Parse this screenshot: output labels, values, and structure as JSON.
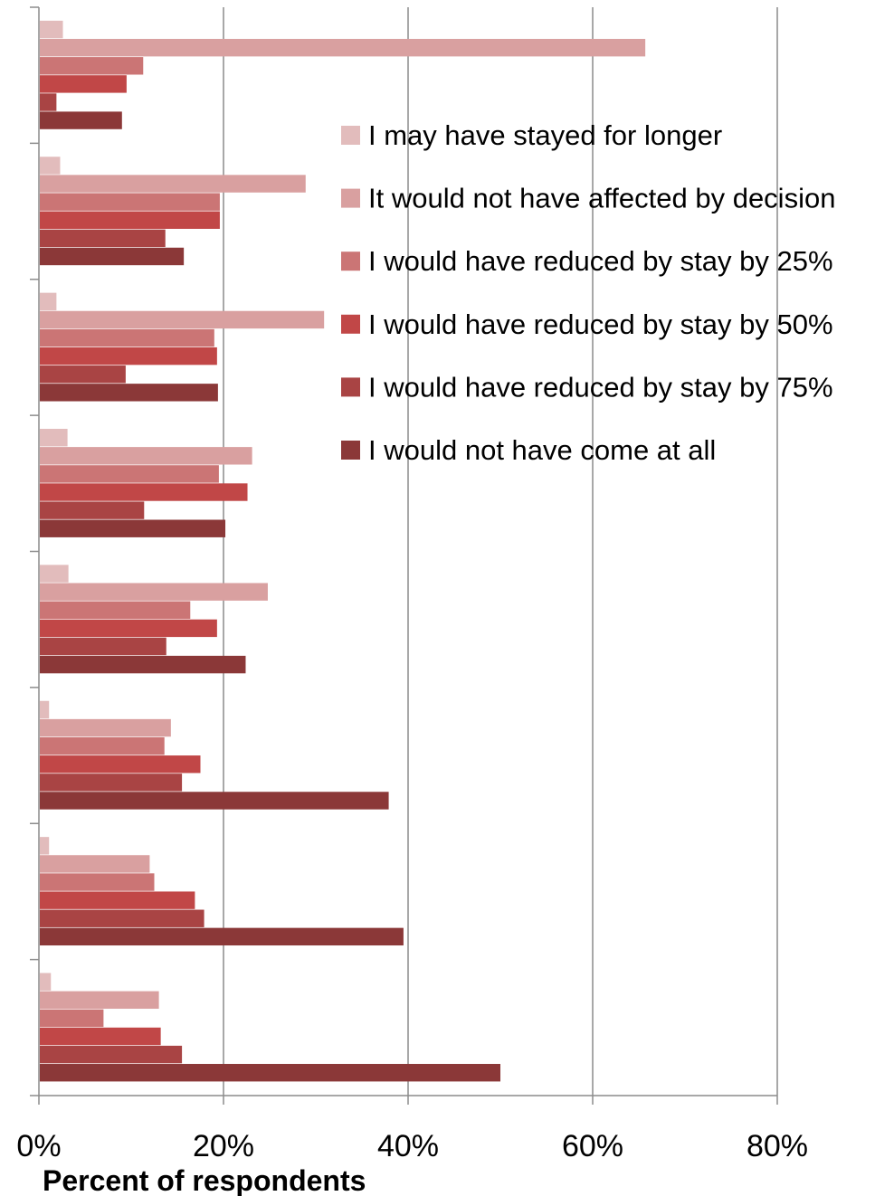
{
  "chart_data": {
    "type": "bar",
    "orientation": "horizontal",
    "grid": true,
    "legend_position": "top-right",
    "xlabel": "Percent of respondents",
    "xlim": [
      0,
      80
    ],
    "xticks": [
      "0%",
      "20%",
      "40%",
      "60%",
      "80%"
    ],
    "xtick_values": [
      0,
      20,
      40,
      60,
      80
    ],
    "categories": [
      "",
      "",
      "",
      "",
      "",
      "",
      "",
      ""
    ],
    "series": [
      {
        "name": "I may have stayed for longer",
        "color": "#e2bcbc",
        "values": [
          2.6,
          2.3,
          1.9,
          3.1,
          3.2,
          1.1,
          1.1,
          1.3
        ]
      },
      {
        "name": "It would not have affected by decision",
        "color": "#d9a0a0",
        "values": [
          65.7,
          28.9,
          30.9,
          23.1,
          24.8,
          14.3,
          12.0,
          13.0
        ]
      },
      {
        "name": "I would have reduced by stay by 25%",
        "color": "#cb7575",
        "values": [
          11.3,
          19.6,
          19.0,
          19.5,
          16.4,
          13.6,
          12.5,
          7.0
        ]
      },
      {
        "name": "I would have reduced by stay by 50%",
        "color": "#c14747",
        "values": [
          9.5,
          19.6,
          19.3,
          22.6,
          19.3,
          17.5,
          16.9,
          13.2
        ]
      },
      {
        "name": "I would have reduced by stay by 75%",
        "color": "#a94444",
        "values": [
          1.9,
          13.7,
          9.4,
          11.4,
          13.8,
          15.5,
          17.9,
          15.5
        ]
      },
      {
        "name": "I would not have come at all",
        "color": "#8b3838",
        "values": [
          9.0,
          15.7,
          19.4,
          20.2,
          22.4,
          37.9,
          39.5,
          50.0
        ]
      }
    ]
  }
}
